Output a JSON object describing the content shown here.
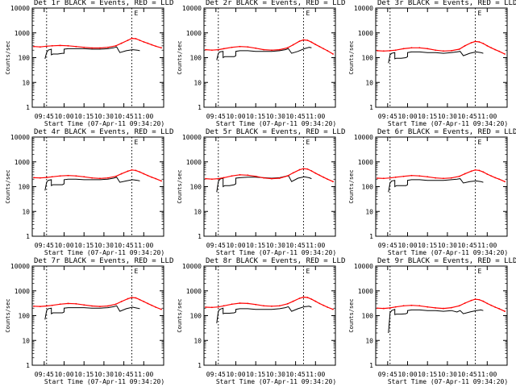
{
  "figure": {
    "series_styles": {
      "events": {
        "color": "#000000"
      },
      "lld": {
        "color": "#ff0000"
      }
    },
    "common_axes": {
      "xlabel": "Start Time (07-Apr-11 09:34:20)",
      "ylabel": "Counts/sec",
      "xlim": [
        9.6,
        11.25
      ],
      "ylim": [
        1,
        10000
      ],
      "yscale": "log",
      "xticks": [
        9.75,
        10.0,
        10.25,
        10.5,
        10.75,
        11.0
      ],
      "xtick_labels": [
        "09:45",
        "10:00",
        "10:15",
        "10:30",
        "10:45",
        "11:00"
      ],
      "yticks": [
        1,
        10,
        100,
        1000,
        10000
      ],
      "ytick_labels": [
        "1",
        "10",
        "100",
        "1000",
        "10000"
      ],
      "vlines": [
        9.78,
        10.85
      ],
      "marker_label": "E"
    }
  },
  "chart_data": [
    {
      "type": "line",
      "title": "Det 1r BLACK = Events, RED = LLD",
      "detector": "1r",
      "x": [
        9.62,
        9.7,
        9.78,
        9.85,
        9.95,
        10.05,
        10.15,
        10.25,
        10.35,
        10.45,
        10.55,
        10.65,
        10.72,
        10.8,
        10.85,
        10.9,
        10.95,
        11.0,
        11.05,
        11.1,
        11.15,
        11.22
      ],
      "series": [
        {
          "name": "events",
          "x": [
            9.76,
            9.78,
            9.8,
            9.84,
            9.84,
            9.86,
            9.92,
            9.98,
            10.0,
            10.0,
            10.05,
            10.15,
            10.25,
            10.35,
            10.45,
            10.55,
            10.62,
            10.66,
            10.7,
            10.78,
            10.86,
            10.92,
            10.95
          ],
          "values": [
            90,
            160,
            200,
            220,
            130,
            140,
            140,
            150,
            150,
            220,
            230,
            230,
            230,
            220,
            220,
            230,
            250,
            270,
            160,
            190,
            210,
            200,
            190
          ]
        },
        {
          "name": "lld",
          "values": [
            280,
            270,
            290,
            300,
            310,
            300,
            280,
            260,
            245,
            245,
            260,
            300,
            380,
            500,
            600,
            580,
            500,
            430,
            380,
            330,
            290,
            250
          ]
        }
      ]
    },
    {
      "type": "line",
      "title": "Det 2r BLACK = Events, RED = LLD",
      "detector": "2r",
      "x": [
        9.62,
        9.7,
        9.78,
        9.85,
        9.95,
        10.05,
        10.15,
        10.25,
        10.35,
        10.45,
        10.55,
        10.65,
        10.72,
        10.8,
        10.85,
        10.9,
        10.95,
        11.0,
        11.05,
        11.1,
        11.15,
        11.22
      ],
      "series": [
        {
          "name": "events",
          "x": [
            9.76,
            9.78,
            9.8,
            9.84,
            9.84,
            9.86,
            9.92,
            9.98,
            10.0,
            10.0,
            10.05,
            10.15,
            10.25,
            10.35,
            10.45,
            10.55,
            10.62,
            10.66,
            10.7,
            10.78,
            10.86,
            10.92,
            10.95
          ],
          "values": [
            80,
            150,
            170,
            180,
            100,
            110,
            110,
            110,
            120,
            180,
            190,
            190,
            180,
            180,
            180,
            190,
            210,
            230,
            150,
            180,
            230,
            260,
            250
          ]
        },
        {
          "name": "lld",
          "values": [
            210,
            200,
            210,
            230,
            260,
            280,
            270,
            240,
            210,
            200,
            210,
            250,
            330,
            460,
            520,
            500,
            420,
            340,
            280,
            230,
            190,
            140
          ]
        }
      ]
    },
    {
      "type": "line",
      "title": "Det 3r BLACK = Events, RED = LLD",
      "detector": "3r",
      "x": [
        9.62,
        9.7,
        9.78,
        9.85,
        9.95,
        10.05,
        10.15,
        10.25,
        10.35,
        10.45,
        10.55,
        10.65,
        10.72,
        10.8,
        10.85,
        10.9,
        10.95,
        11.0,
        11.05,
        11.1,
        11.15,
        11.22
      ],
      "series": [
        {
          "name": "events",
          "x": [
            9.76,
            9.78,
            9.8,
            9.84,
            9.84,
            9.86,
            9.92,
            9.98,
            10.0,
            10.0,
            10.05,
            10.15,
            10.25,
            10.35,
            10.45,
            10.55,
            10.62,
            10.66,
            10.7,
            10.78,
            10.86,
            10.92,
            10.95
          ],
          "values": [
            60,
            130,
            150,
            160,
            90,
            95,
            95,
            100,
            110,
            160,
            170,
            170,
            160,
            160,
            150,
            160,
            170,
            180,
            120,
            150,
            170,
            160,
            150
          ]
        },
        {
          "name": "lld",
          "values": [
            190,
            185,
            190,
            200,
            230,
            250,
            250,
            230,
            200,
            185,
            190,
            220,
            300,
            400,
            450,
            430,
            370,
            300,
            250,
            210,
            180,
            140
          ]
        }
      ]
    },
    {
      "type": "line",
      "title": "Det 4r BLACK = Events, RED = LLD",
      "detector": "4r",
      "x": [
        9.62,
        9.7,
        9.78,
        9.85,
        9.95,
        10.05,
        10.15,
        10.25,
        10.35,
        10.45,
        10.55,
        10.65,
        10.72,
        10.8,
        10.85,
        10.9,
        10.95,
        11.0,
        11.05,
        11.1,
        11.15,
        11.22
      ],
      "series": [
        {
          "name": "events",
          "x": [
            9.76,
            9.78,
            9.8,
            9.84,
            9.84,
            9.86,
            9.92,
            9.98,
            10.0,
            10.0,
            10.05,
            10.15,
            10.25,
            10.35,
            10.45,
            10.55,
            10.62,
            10.66,
            10.7,
            10.78,
            10.86,
            10.92,
            10.95
          ],
          "values": [
            70,
            150,
            180,
            190,
            110,
            120,
            120,
            120,
            130,
            190,
            200,
            200,
            190,
            190,
            190,
            200,
            220,
            240,
            150,
            170,
            190,
            180,
            170
          ]
        },
        {
          "name": "lld",
          "values": [
            230,
            225,
            235,
            250,
            270,
            280,
            270,
            250,
            225,
            215,
            225,
            260,
            330,
            420,
            470,
            450,
            390,
            330,
            280,
            240,
            210,
            170
          ]
        }
      ]
    },
    {
      "type": "line",
      "title": "Det 5r BLACK = Events, RED = LLD",
      "detector": "5r",
      "x": [
        9.62,
        9.7,
        9.78,
        9.85,
        9.95,
        10.05,
        10.15,
        10.25,
        10.35,
        10.45,
        10.55,
        10.65,
        10.72,
        10.8,
        10.85,
        10.9,
        10.95,
        11.0,
        11.05,
        11.1,
        11.15,
        11.22
      ],
      "series": [
        {
          "name": "events",
          "x": [
            9.76,
            9.78,
            9.8,
            9.84,
            9.84,
            9.86,
            9.92,
            9.98,
            10.0,
            10.0,
            10.05,
            10.15,
            10.25,
            10.35,
            10.45,
            10.55,
            10.62,
            10.66,
            10.7,
            10.78,
            10.86,
            10.92,
            10.95
          ],
          "values": [
            60,
            160,
            200,
            220,
            100,
            110,
            110,
            120,
            130,
            220,
            230,
            240,
            240,
            230,
            220,
            230,
            260,
            280,
            160,
            220,
            250,
            230,
            210
          ]
        },
        {
          "name": "lld",
          "values": [
            210,
            200,
            210,
            230,
            270,
            300,
            290,
            260,
            225,
            210,
            220,
            270,
            360,
            480,
            530,
            510,
            430,
            350,
            290,
            240,
            200,
            160
          ]
        }
      ]
    },
    {
      "type": "line",
      "title": "Det 6r BLACK = Events, RED = LLD",
      "detector": "6r",
      "x": [
        9.62,
        9.7,
        9.78,
        9.85,
        9.95,
        10.05,
        10.15,
        10.25,
        10.35,
        10.45,
        10.55,
        10.65,
        10.72,
        10.8,
        10.85,
        10.9,
        10.95,
        11.0,
        11.05,
        11.1,
        11.15,
        11.22
      ],
      "series": [
        {
          "name": "events",
          "x": [
            9.76,
            9.78,
            9.8,
            9.84,
            9.84,
            9.86,
            9.92,
            9.98,
            10.0,
            10.0,
            10.05,
            10.15,
            10.25,
            10.35,
            10.45,
            10.55,
            10.62,
            10.66,
            10.7,
            10.78,
            10.86,
            10.92,
            10.95
          ],
          "values": [
            60,
            140,
            170,
            180,
            100,
            110,
            110,
            110,
            120,
            180,
            190,
            190,
            180,
            180,
            180,
            190,
            200,
            210,
            140,
            160,
            170,
            160,
            150
          ]
        },
        {
          "name": "lld",
          "values": [
            220,
            215,
            225,
            240,
            260,
            280,
            270,
            250,
            225,
            215,
            225,
            260,
            330,
            420,
            470,
            450,
            390,
            320,
            270,
            230,
            200,
            160
          ]
        }
      ]
    },
    {
      "type": "line",
      "title": "Det 7r BLACK = Events, RED = LLD",
      "detector": "7r",
      "x": [
        9.62,
        9.7,
        9.78,
        9.85,
        9.95,
        10.05,
        10.15,
        10.25,
        10.35,
        10.45,
        10.55,
        10.65,
        10.72,
        10.8,
        10.85,
        10.9,
        10.95,
        11.0,
        11.05,
        11.1,
        11.15,
        11.22
      ],
      "series": [
        {
          "name": "events",
          "x": [
            9.76,
            9.78,
            9.8,
            9.84,
            9.84,
            9.86,
            9.92,
            9.98,
            10.0,
            10.0,
            10.05,
            10.15,
            10.25,
            10.35,
            10.45,
            10.55,
            10.62,
            10.66,
            10.7,
            10.78,
            10.86,
            10.92,
            10.95
          ],
          "values": [
            70,
            160,
            190,
            200,
            120,
            130,
            130,
            130,
            140,
            200,
            210,
            210,
            210,
            200,
            200,
            210,
            230,
            250,
            150,
            190,
            220,
            200,
            190
          ]
        },
        {
          "name": "lld",
          "values": [
            240,
            235,
            245,
            260,
            290,
            310,
            300,
            270,
            245,
            235,
            245,
            290,
            370,
            480,
            540,
            520,
            440,
            370,
            310,
            260,
            220,
            180
          ]
        }
      ]
    },
    {
      "type": "line",
      "title": "Det 8r BLACK = Events, RED = LLD",
      "detector": "8r",
      "x": [
        9.62,
        9.7,
        9.78,
        9.85,
        9.95,
        10.05,
        10.15,
        10.25,
        10.35,
        10.45,
        10.55,
        10.65,
        10.72,
        10.8,
        10.85,
        10.9,
        10.95,
        11.0,
        11.05,
        11.1,
        11.15,
        11.22
      ],
      "series": [
        {
          "name": "events",
          "x": [
            9.76,
            9.78,
            9.8,
            9.84,
            9.84,
            9.86,
            9.92,
            9.98,
            10.0,
            10.0,
            10.05,
            10.15,
            10.25,
            10.35,
            10.45,
            10.55,
            10.62,
            10.66,
            10.7,
            10.78,
            10.86,
            10.92,
            10.95
          ],
          "values": [
            50,
            150,
            180,
            200,
            120,
            125,
            125,
            130,
            140,
            180,
            190,
            190,
            180,
            180,
            180,
            190,
            210,
            230,
            150,
            190,
            230,
            240,
            220
          ]
        },
        {
          "name": "lld",
          "values": [
            220,
            215,
            225,
            250,
            290,
            320,
            310,
            280,
            250,
            240,
            250,
            300,
            380,
            500,
            560,
            540,
            460,
            380,
            310,
            260,
            220,
            180
          ]
        }
      ]
    },
    {
      "type": "line",
      "title": "Det 9r BLACK = Events, RED = LLD",
      "detector": "9r",
      "x": [
        9.62,
        9.7,
        9.78,
        9.85,
        9.95,
        10.05,
        10.15,
        10.25,
        10.35,
        10.45,
        10.55,
        10.65,
        10.72,
        10.8,
        10.85,
        10.9,
        10.95,
        11.0,
        11.05,
        11.1,
        11.15,
        11.22
      ],
      "series": [
        {
          "name": "events",
          "x": [
            9.76,
            9.78,
            9.8,
            9.84,
            9.84,
            9.86,
            9.92,
            9.98,
            10.0,
            10.0,
            10.05,
            10.15,
            10.25,
            10.35,
            10.45,
            10.55,
            10.62,
            10.66,
            10.7,
            10.78,
            10.86,
            10.92,
            10.95
          ],
          "values": [
            20,
            130,
            160,
            180,
            110,
            115,
            115,
            120,
            130,
            160,
            170,
            170,
            160,
            160,
            150,
            160,
            140,
            160,
            120,
            140,
            160,
            170,
            160
          ]
        },
        {
          "name": "lld",
          "values": [
            200,
            195,
            205,
            225,
            250,
            260,
            250,
            225,
            205,
            195,
            210,
            250,
            320,
            410,
            460,
            440,
            380,
            310,
            260,
            220,
            190,
            150
          ]
        }
      ]
    }
  ]
}
